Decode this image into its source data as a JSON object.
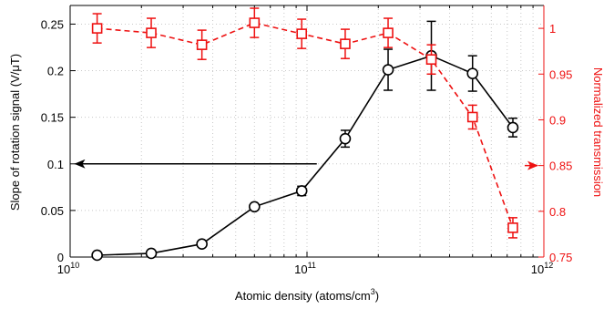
{
  "chart_data": {
    "type": "line",
    "x_scale": "log",
    "xlim": [
      10000000000,
      1000000000000
    ],
    "ylim_left": [
      0,
      0.27
    ],
    "ylim_right": [
      0.75,
      1.025
    ],
    "grid": true,
    "xlabel": "Atomic density (atoms/cm",
    "xlabel_sup": "3",
    "xlabel_end": ")",
    "ylabel_left": "Slope of rotation signal (V/μT)",
    "ylabel_right": "Normalized transmission",
    "x_ticks": [
      {
        "value": 10000000000,
        "base": "10",
        "exp": "10"
      },
      {
        "value": 100000000000,
        "base": "10",
        "exp": "11"
      },
      {
        "value": 1000000000000,
        "base": "10",
        "exp": "12"
      }
    ],
    "y_ticks_left": [
      "0",
      "0.05",
      "0.1",
      "0.15",
      "0.2",
      "0.25"
    ],
    "y_ticks_right": [
      "0.75",
      "0.8",
      "0.85",
      "0.9",
      "0.95",
      "1"
    ],
    "series": [
      {
        "axis": "left",
        "color": "#000000",
        "marker": "circle",
        "line": "solid",
        "points": [
          {
            "x": 13000000000,
            "y": 0.002,
            "err": 0
          },
          {
            "x": 22000000000,
            "y": 0.004,
            "err": 0
          },
          {
            "x": 36000000000,
            "y": 0.014,
            "err": 0
          },
          {
            "x": 60000000000,
            "y": 0.054,
            "err": 0
          },
          {
            "x": 95000000000,
            "y": 0.071,
            "err": 0.005
          },
          {
            "x": 145000000000,
            "y": 0.127,
            "err": 0.009
          },
          {
            "x": 220000000000,
            "y": 0.201,
            "err": 0.022
          },
          {
            "x": 335000000000,
            "y": 0.216,
            "err": 0.037
          },
          {
            "x": 500000000000,
            "y": 0.197,
            "err": 0.019
          },
          {
            "x": 740000000000,
            "y": 0.139,
            "err": 0.01
          }
        ]
      },
      {
        "axis": "right",
        "color": "#ee1111",
        "marker": "square",
        "line": "dashed",
        "points": [
          {
            "x": 13000000000,
            "y": 1.0,
            "err": 0.016
          },
          {
            "x": 22000000000,
            "y": 0.995,
            "err": 0.016
          },
          {
            "x": 36000000000,
            "y": 0.982,
            "err": 0.016
          },
          {
            "x": 60000000000,
            "y": 1.006,
            "err": 0.016
          },
          {
            "x": 95000000000,
            "y": 0.994,
            "err": 0.016
          },
          {
            "x": 145000000000,
            "y": 0.983,
            "err": 0.016
          },
          {
            "x": 220000000000,
            "y": 0.995,
            "err": 0.016
          },
          {
            "x": 335000000000,
            "y": 0.966,
            "err": 0.016
          },
          {
            "x": 500000000000,
            "y": 0.903,
            "err": 0.013
          },
          {
            "x": 740000000000,
            "y": 0.782,
            "err": 0.011
          }
        ]
      }
    ],
    "annotations": [
      {
        "type": "arrow",
        "axis": "left",
        "color": "#000000",
        "x_from": 110000000000,
        "x_to": 10500000000,
        "y": 0.1
      },
      {
        "type": "arrow",
        "axis": "right",
        "color": "#ee1111",
        "x_from": 830000000000,
        "x_to": 940000000000,
        "y": 0.85
      }
    ],
    "colors": {
      "left_axis": "#000000",
      "right_axis": "#ee1111",
      "grid": "#c8c8c8"
    }
  }
}
